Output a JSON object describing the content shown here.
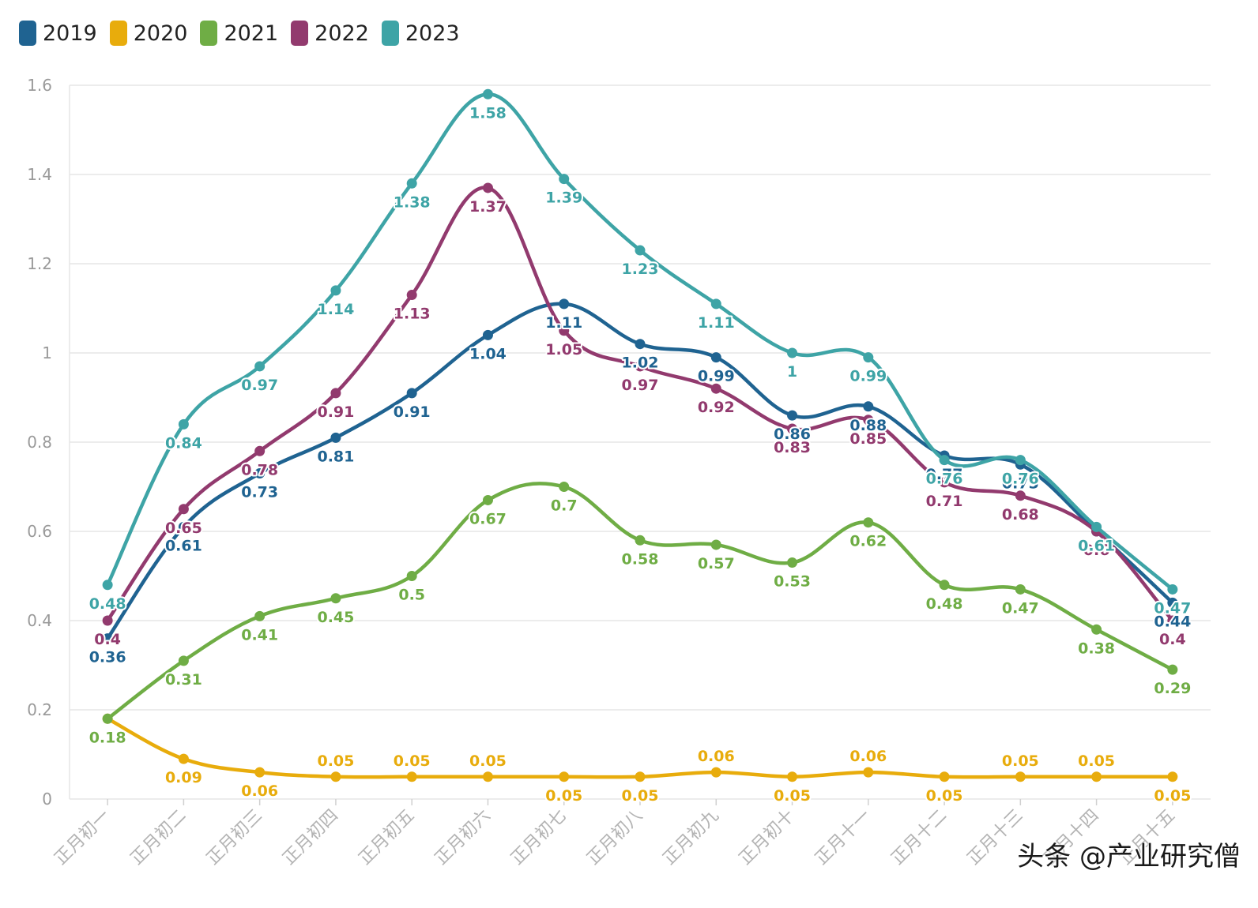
{
  "watermark": "头条 @产业研究僧",
  "chart_data": {
    "type": "line",
    "categories": [
      "正月初一",
      "正月初二",
      "正月初三",
      "正月初四",
      "正月初五",
      "正月初六",
      "正月初七",
      "正月初八",
      "正月初九",
      "正月初十",
      "正月十一",
      "正月十二",
      "正月十三",
      "正月十四",
      "正月十五"
    ],
    "ylim": [
      0,
      1.6
    ],
    "yticks": [
      "0",
      "0.2",
      "0.4",
      "0.6",
      "0.8",
      "1",
      "1.2",
      "1.4",
      "1.6"
    ],
    "grid": true,
    "legend_position": "top-left",
    "series": [
      {
        "name": "2019",
        "color": "#1f6391",
        "values": [
          0.36,
          0.61,
          0.73,
          0.81,
          0.91,
          1.04,
          1.11,
          1.02,
          0.99,
          0.86,
          0.88,
          0.77,
          0.75,
          0.6,
          0.44
        ]
      },
      {
        "name": "2020",
        "color": "#e8ac0c",
        "values": [
          0.18,
          0.09,
          0.06,
          0.05,
          0.05,
          0.05,
          0.05,
          0.05,
          0.06,
          0.05,
          0.06,
          0.05,
          0.05,
          0.05,
          0.05
        ]
      },
      {
        "name": "2021",
        "color": "#6fad45",
        "values": [
          0.18,
          0.31,
          0.41,
          0.45,
          0.5,
          0.67,
          0.7,
          0.58,
          0.57,
          0.53,
          0.62,
          0.48,
          0.47,
          0.38,
          0.29
        ]
      },
      {
        "name": "2022",
        "color": "#923a6e",
        "values": [
          0.4,
          0.65,
          0.78,
          0.91,
          1.13,
          1.37,
          1.05,
          0.97,
          0.92,
          0.83,
          0.85,
          0.71,
          0.68,
          0.6,
          0.4
        ]
      },
      {
        "name": "2023",
        "color": "#3ea4a6",
        "values": [
          0.48,
          0.84,
          0.97,
          1.14,
          1.38,
          1.58,
          1.39,
          1.23,
          1.11,
          1,
          0.99,
          0.76,
          0.76,
          0.61,
          0.47
        ]
      }
    ]
  }
}
